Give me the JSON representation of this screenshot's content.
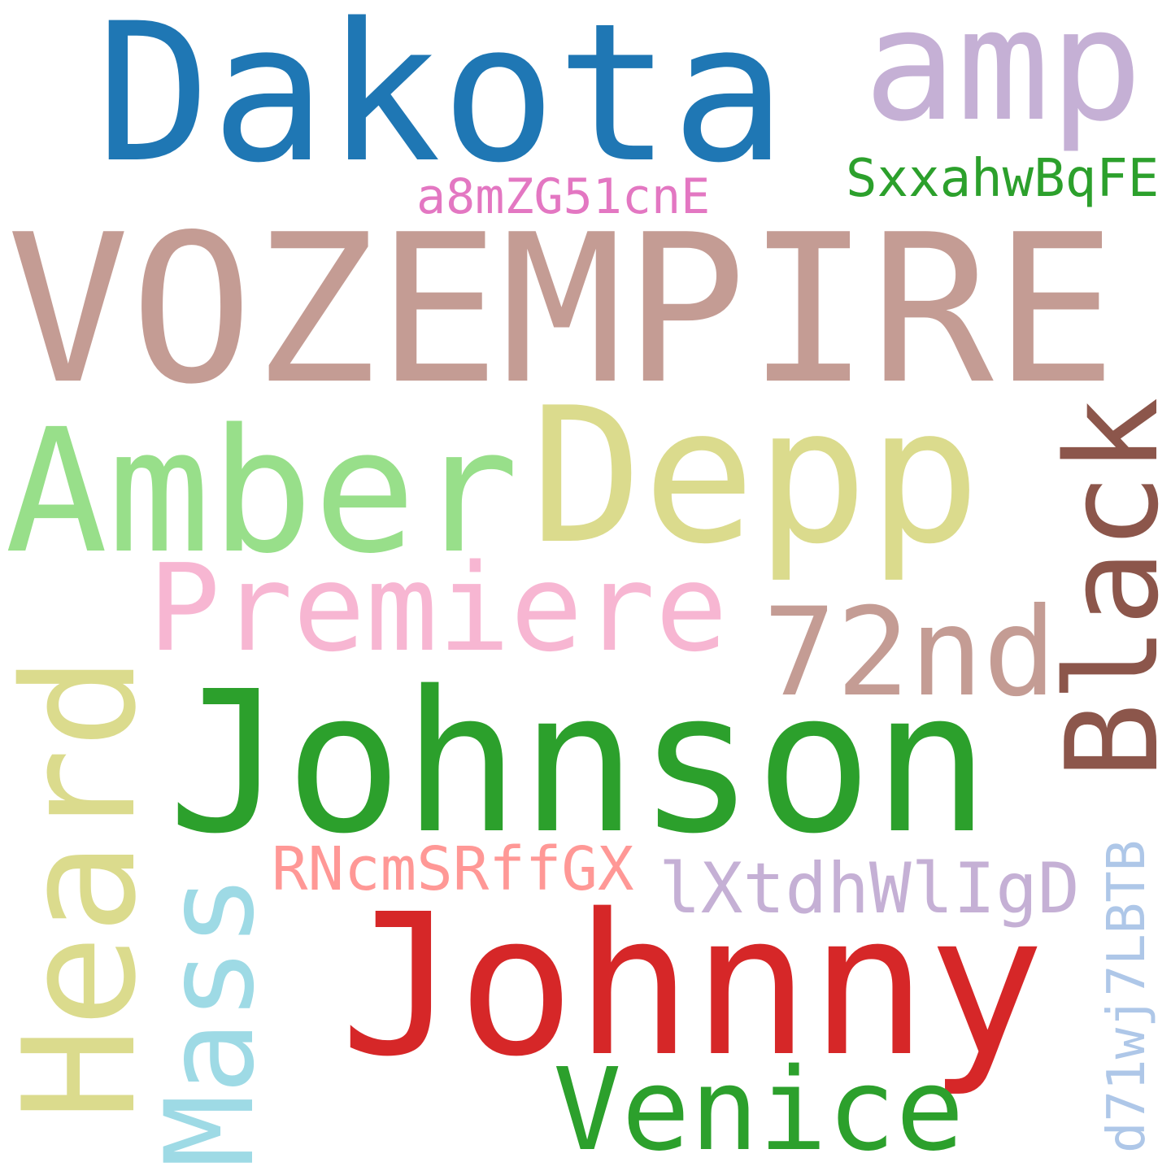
{
  "words": {
    "dakota": {
      "text": "Dakota",
      "color": "#1f77b4"
    },
    "amp": {
      "text": "amp",
      "color": "#c5b0d5"
    },
    "sxx": {
      "text": "SxxahwBqFE",
      "color": "#2ca02c"
    },
    "a8m": {
      "text": "a8mZG51cnE",
      "color": "#e377c2"
    },
    "voz": {
      "text": "VOZEMPIRE",
      "color": "#c49c94"
    },
    "amber": {
      "text": "Amber",
      "color": "#98df8a"
    },
    "depp": {
      "text": "Depp",
      "color": "#dbdb8d"
    },
    "black": {
      "text": "Black",
      "color": "#8c564b"
    },
    "premiere": {
      "text": "Premiere",
      "color": "#f7b6d2"
    },
    "n72": {
      "text": "72nd",
      "color": "#c49c94"
    },
    "heard": {
      "text": "Heard",
      "color": "#dbdb8d"
    },
    "johnson": {
      "text": "Johnson",
      "color": "#2ca02c"
    },
    "rnc": {
      "text": "RNcmSRffGX",
      "color": "#ff9896"
    },
    "lxt": {
      "text": "lXtdhWlIgD",
      "color": "#c5b0d5"
    },
    "mass": {
      "text": "Mass",
      "color": "#9edae5"
    },
    "johnny": {
      "text": "Johnny",
      "color": "#d62728"
    },
    "d71": {
      "text": "d71wj7LBTB",
      "color": "#aec7e8"
    },
    "venice": {
      "text": "Venice",
      "color": "#2ca02c"
    }
  }
}
